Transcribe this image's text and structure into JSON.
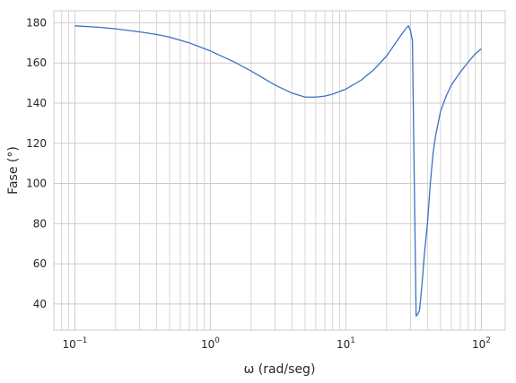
{
  "chart_data": {
    "type": "line",
    "title": "",
    "xlabel": "ω (rad/seg)",
    "ylabel": "Fase (°)",
    "xscale": "log",
    "xlim": [
      0.07,
      150
    ],
    "ylim": [
      27,
      186
    ],
    "grid": true,
    "legend": "none",
    "x_ticks": [
      {
        "value": 0.1,
        "base": "10",
        "exp": "−1"
      },
      {
        "value": 1,
        "base": "10",
        "exp": "0"
      },
      {
        "value": 10,
        "base": "10",
        "exp": "1"
      },
      {
        "value": 100,
        "base": "10",
        "exp": "2"
      }
    ],
    "y_ticks": [
      {
        "value": 40,
        "label": "40"
      },
      {
        "value": 60,
        "label": "60"
      },
      {
        "value": 80,
        "label": "80"
      },
      {
        "value": 100,
        "label": "100"
      },
      {
        "value": 120,
        "label": "120"
      },
      {
        "value": 140,
        "label": "140"
      },
      {
        "value": 160,
        "label": "160"
      },
      {
        "value": 180,
        "label": "180"
      }
    ],
    "series": [
      {
        "color": "#3a72c4",
        "points": [
          [
            0.1,
            178.5
          ],
          [
            0.15,
            177.8
          ],
          [
            0.2,
            177.0
          ],
          [
            0.3,
            175.5
          ],
          [
            0.4,
            174.2
          ],
          [
            0.5,
            172.9
          ],
          [
            0.7,
            170.0
          ],
          [
            1.0,
            166.0
          ],
          [
            1.5,
            160.5
          ],
          [
            2.0,
            156.0
          ],
          [
            3.0,
            149.0
          ],
          [
            4.0,
            145.0
          ],
          [
            5.0,
            143.0
          ],
          [
            6.0,
            143.0
          ],
          [
            7.0,
            143.5
          ],
          [
            8.0,
            144.5
          ],
          [
            10.0,
            147.0
          ],
          [
            13.0,
            151.5
          ],
          [
            16.0,
            156.5
          ],
          [
            20.0,
            163.5
          ],
          [
            25.0,
            173.0
          ],
          [
            28.0,
            177.5
          ],
          [
            29.0,
            178.5
          ],
          [
            30.0,
            176.0
          ],
          [
            31.0,
            171.0
          ],
          [
            31.5,
            135.0
          ],
          [
            32.3,
            80.0
          ],
          [
            33.0,
            34.0
          ],
          [
            34.0,
            35.0
          ],
          [
            35.0,
            37.0
          ],
          [
            36.5,
            50.0
          ],
          [
            38.0,
            65.0
          ],
          [
            40.0,
            80.0
          ],
          [
            42.0,
            100.0
          ],
          [
            44.0,
            115.0
          ],
          [
            46.0,
            124.0
          ],
          [
            50.0,
            136.0
          ],
          [
            55.0,
            143.5
          ],
          [
            60.0,
            149.0
          ],
          [
            70.0,
            155.5
          ],
          [
            80.0,
            160.5
          ],
          [
            90.0,
            164.5
          ],
          [
            100.0,
            167.0
          ]
        ]
      }
    ]
  }
}
